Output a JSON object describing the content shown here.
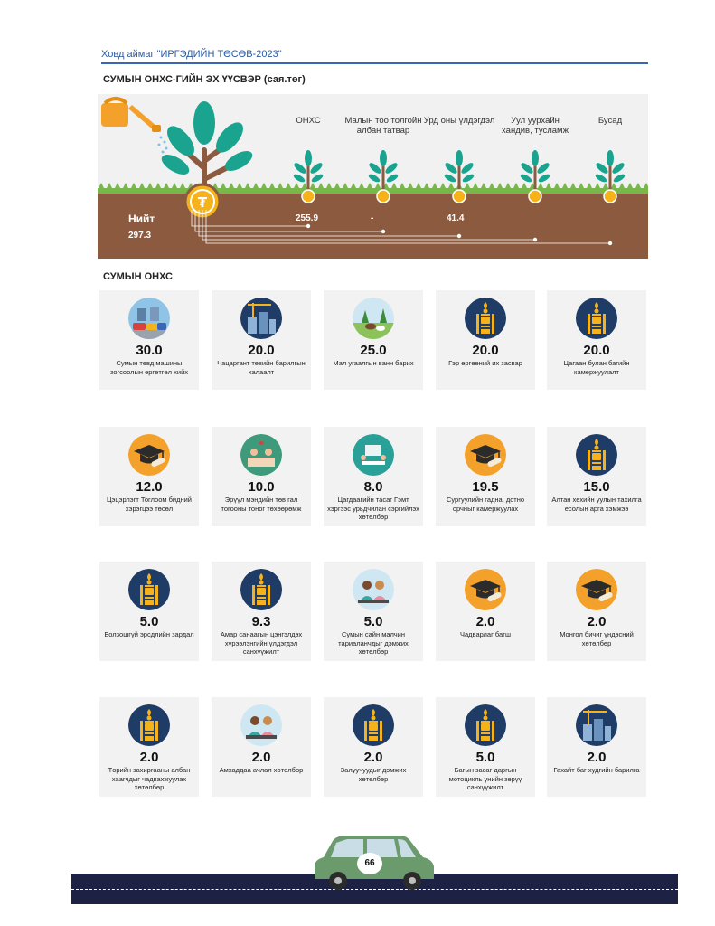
{
  "header": {
    "title": "Ховд аймаг \"ИРГЭДИЙН ТӨСӨВ-2023\""
  },
  "sources_section": {
    "title": "СУМЫН ОНХС-ГИЙН ЭХ ҮҮСВЭР (сая.төг)",
    "total_label": "Нийт",
    "total_value": "297.3",
    "sources": [
      {
        "label": "ОНХС",
        "value": "255.9"
      },
      {
        "label": "Малын тоо толгойн албан татвар",
        "value": "-"
      },
      {
        "label": "Урд оны үлдэгдэл",
        "value": "41.4"
      },
      {
        "label": "Уул уурхайн хандив, тусламж",
        "value": ""
      },
      {
        "label": "Бусад",
        "value": ""
      }
    ]
  },
  "projects_section": {
    "title": "СУМЫН ОНХС",
    "projects": [
      {
        "value": "30.0",
        "label": "Сумын төвд машины зогсоолын өргөтгөл хийх",
        "icon": "traffic-icon"
      },
      {
        "value": "20.0",
        "label": "Чацаргант тевийн барилгын халаалт",
        "icon": "construction-icon"
      },
      {
        "value": "25.0",
        "label": "Мал угаалгын ванн барих",
        "icon": "livestock-icon"
      },
      {
        "value": "20.0",
        "label": "Гэр өргөөний их засвар",
        "icon": "soyombo-icon"
      },
      {
        "value": "20.0",
        "label": "Цагаан булан багийн камержуулалт",
        "icon": "soyombo-icon"
      },
      {
        "value": "12.0",
        "label": "Цэцэрлэгт Тоглоом бидний хэрэгцээ төсөл",
        "icon": "graduation-cap-icon"
      },
      {
        "value": "10.0",
        "label": "Эрүүл мэндийн төв гал тогооны тоног төхөөрөмж",
        "icon": "healthcare-icon"
      },
      {
        "value": "8.0",
        "label": "Цагдаагийн тасаг Гэмт хэргээс урьдчилан сэргийлэх хөтөлбөр",
        "icon": "meeting-icon"
      },
      {
        "value": "19.5",
        "label": "Сургуулийн гадна, дотно орчныг камержуулах",
        "icon": "graduation-cap-icon"
      },
      {
        "value": "15.0",
        "label": "Алтан хөхийн уулын тахилга есолын арга хэмжээ",
        "icon": "soyombo-icon"
      },
      {
        "value": "5.0",
        "label": "Болзошгүй эрсдлийн зардал",
        "icon": "soyombo-icon"
      },
      {
        "value": "9.3",
        "label": "Амар санаагын цэнгэлдэх хүрээлэнгийн үлдэгдэл санхүүжилт",
        "icon": "soyombo-icon"
      },
      {
        "value": "5.0",
        "label": "Сумын сайн малчин тариаланчдыг дэмжих хөтөлбөр",
        "icon": "people-icon"
      },
      {
        "value": "2.0",
        "label": "Чадварлаг багш",
        "icon": "graduation-cap-icon"
      },
      {
        "value": "2.0",
        "label": "Монгол бичиг үндэсний хөтөлбөр",
        "icon": "graduation-cap-icon"
      },
      {
        "value": "2.0",
        "label": "Төрийн захиргааны албан хаагчдыг чадвахжуулах хөтөлбөр",
        "icon": "soyombo-icon"
      },
      {
        "value": "2.0",
        "label": "Амхаддаа ачлал хөтөлбөр",
        "icon": "people-icon"
      },
      {
        "value": "2.0",
        "label": "Залуучуудыг дэмжих хөтөлбөр",
        "icon": "soyombo-icon"
      },
      {
        "value": "5.0",
        "label": "Багын засаг даргын мотоцикль үнийн зөрүү санхүүжилт",
        "icon": "soyombo-icon"
      },
      {
        "value": "2.0",
        "label": "Гахайт баг худгийн барилга",
        "icon": "construction-icon"
      }
    ]
  },
  "footer": {
    "page_number": "66"
  },
  "colors": {
    "header": "#2a5aa3",
    "soil": "#8c5a3e",
    "grass": "#78b84a",
    "leaf": "#1aa38e",
    "coin": "#f5b21b",
    "navy": "#1f3c66",
    "orange": "#f4a12c",
    "road": "#1d2245",
    "car": "#6b9a6c"
  }
}
